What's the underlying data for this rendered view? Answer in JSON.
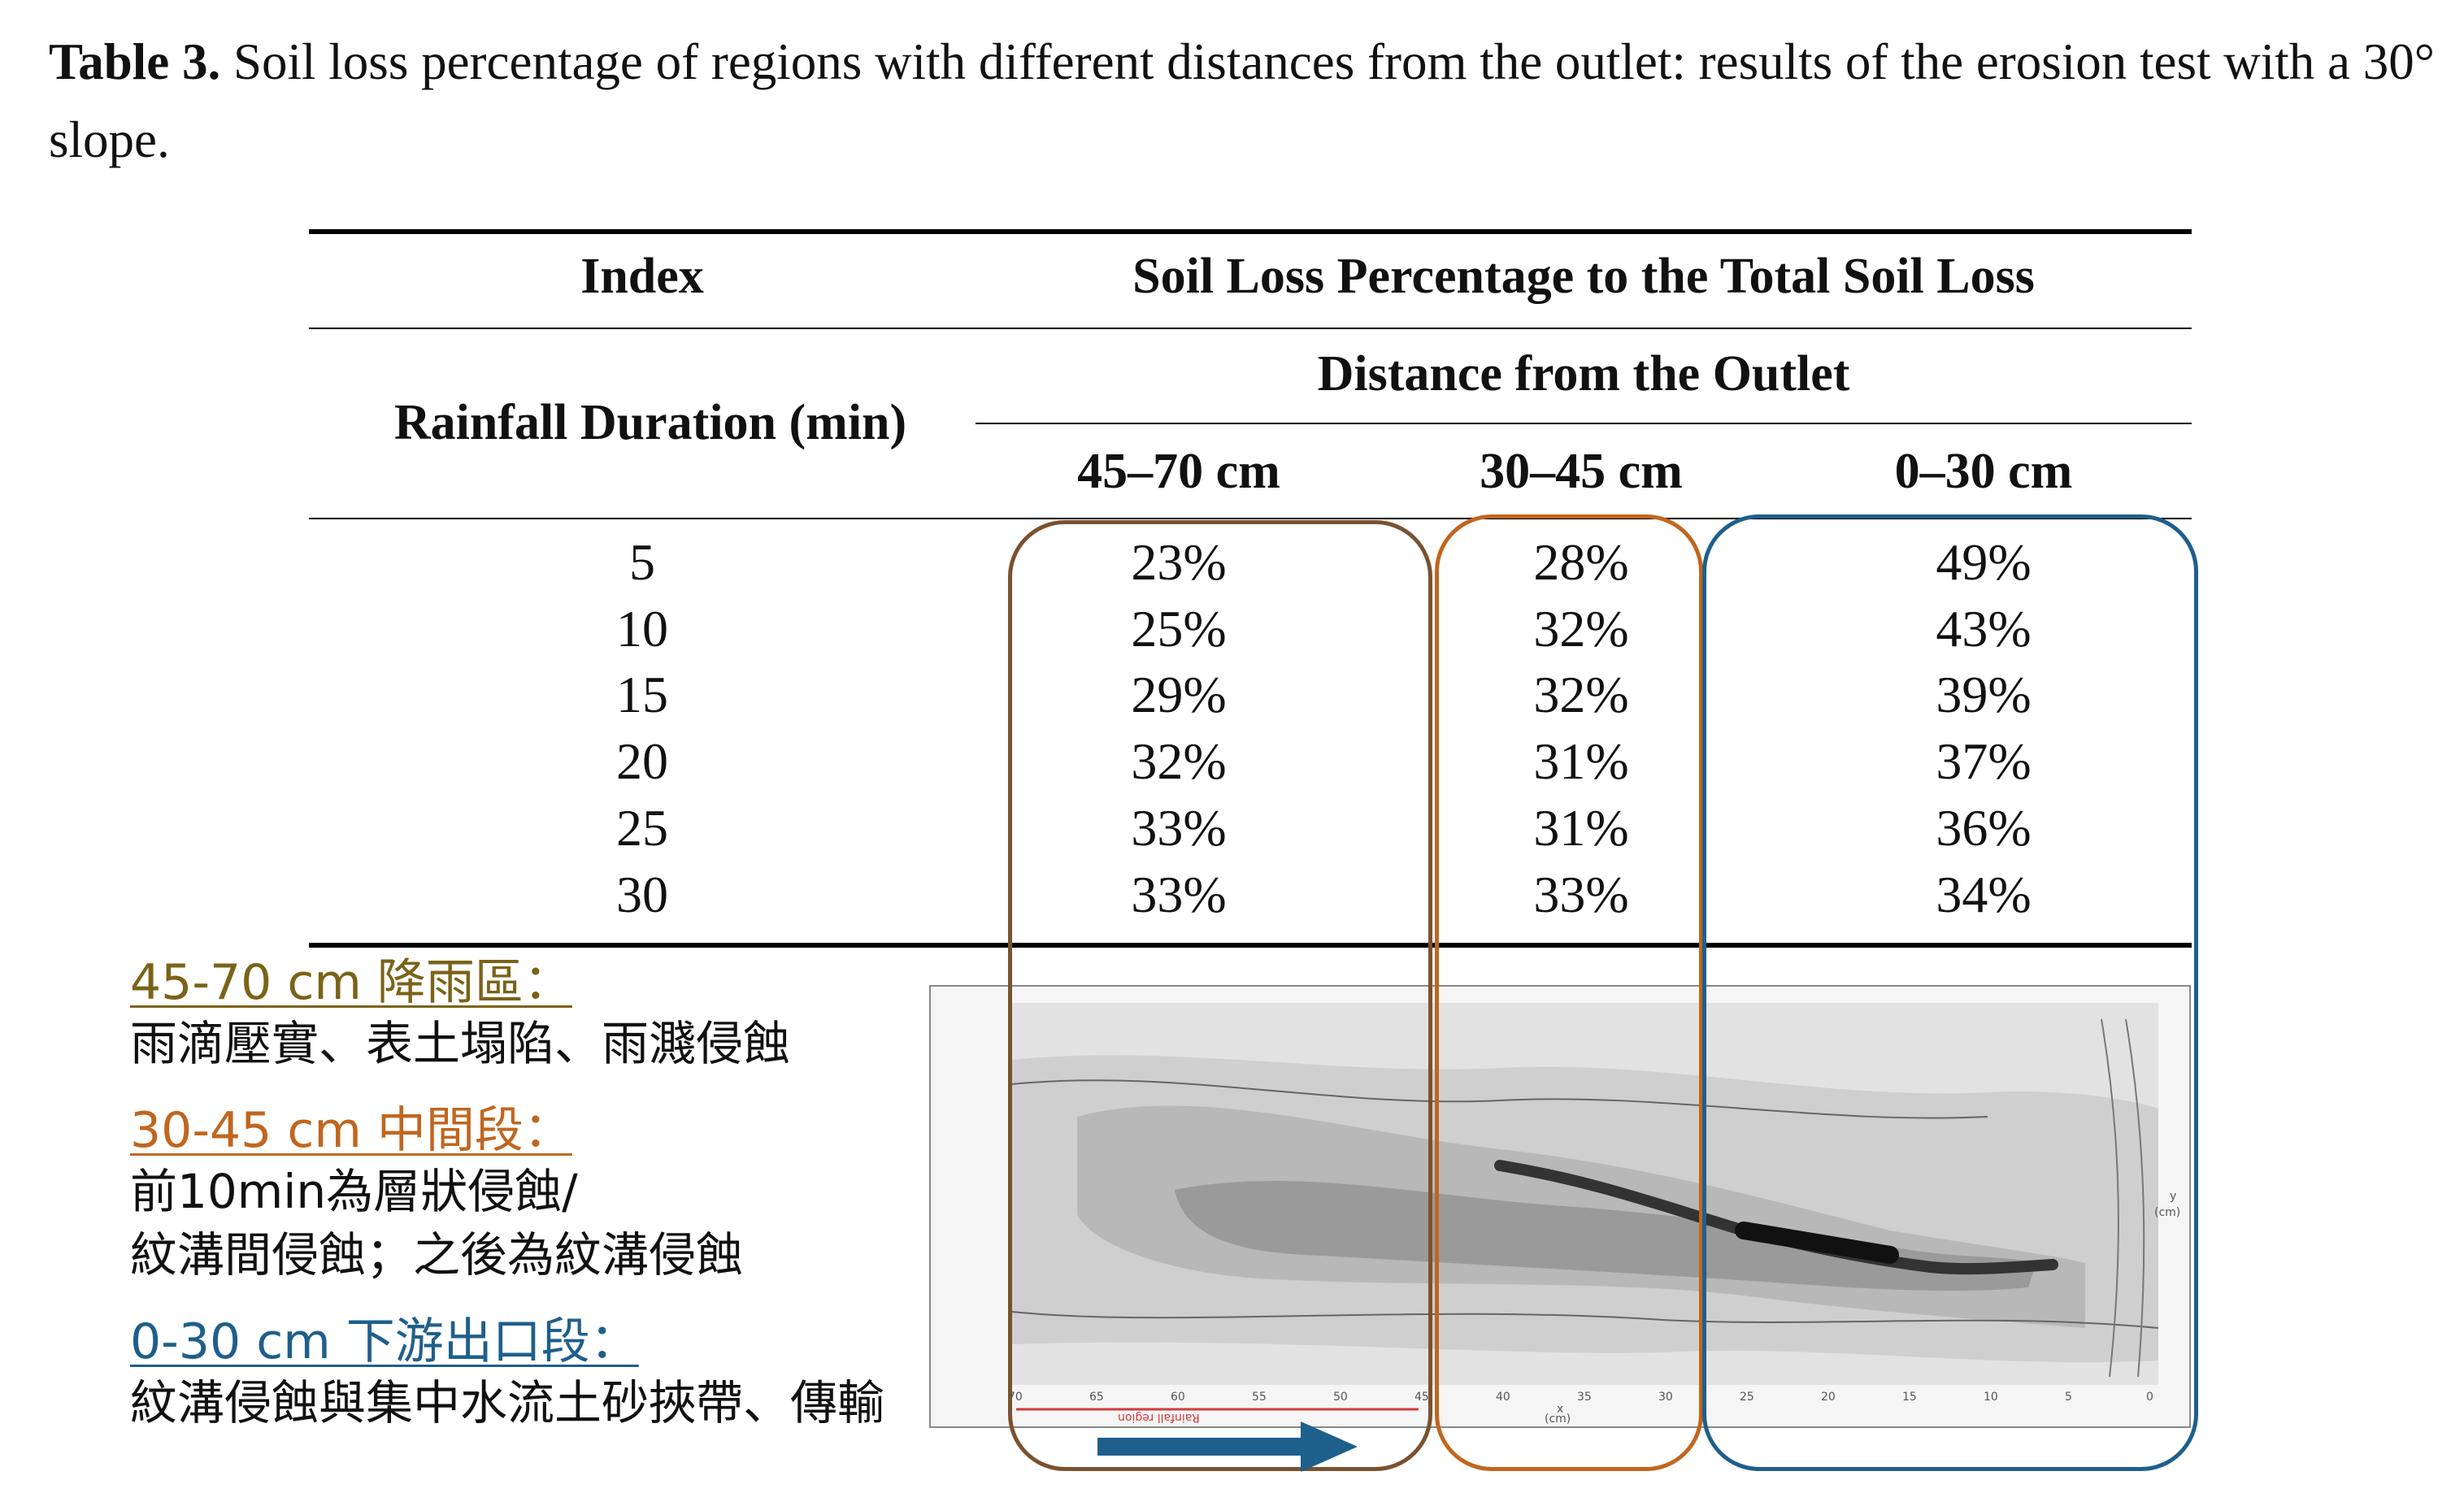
{
  "caption": {
    "label": "Table 3.",
    "text": " Soil loss percentage of regions with different distances from the outlet: results of the erosion test with a 30° slope."
  },
  "table": {
    "index_header": "Index",
    "main_header": "Soil Loss Percentage to the Total Soil Loss",
    "group_header": "Distance from the Outlet",
    "row_header": "Rainfall Duration (min)",
    "columns": [
      "45–70 cm",
      "30–45 cm",
      "0–30 cm"
    ],
    "rows": [
      {
        "duration": "5",
        "values": [
          "23%",
          "28%",
          "49%"
        ]
      },
      {
        "duration": "10",
        "values": [
          "25%",
          "32%",
          "43%"
        ]
      },
      {
        "duration": "15",
        "values": [
          "29%",
          "32%",
          "39%"
        ]
      },
      {
        "duration": "20",
        "values": [
          "32%",
          "31%",
          "37%"
        ]
      },
      {
        "duration": "25",
        "values": [
          "33%",
          "31%",
          "36%"
        ]
      },
      {
        "duration": "30",
        "values": [
          "33%",
          "33%",
          "34%"
        ]
      }
    ]
  },
  "notes": [
    {
      "title": "45-70 cm 降雨區：",
      "lines": [
        "雨滴壓實、表土塌陷、雨濺侵蝕"
      ],
      "color": "#7a6318"
    },
    {
      "title": "30-45 cm 中間段：",
      "lines": [
        "前10min為層狀侵蝕/",
        "紋溝間侵蝕；之後為紋溝侵蝕"
      ],
      "color": "#c0661f"
    },
    {
      "title": "0-30 cm 下游出口段：",
      "lines": [
        "紋溝侵蝕與集中水流土砂挾帶、傳輸"
      ],
      "color": "#1f5f8b"
    }
  ],
  "figure": {
    "x_ticks": [
      "70",
      "65",
      "60",
      "55",
      "50",
      "45",
      "40",
      "35",
      "30",
      "25",
      "20",
      "15",
      "10",
      "5",
      "0"
    ],
    "x_label": "x",
    "x_unit": "(cm)",
    "y_label": "y",
    "y_unit": "(cm)",
    "region_label": "Rainfall region"
  },
  "colors": {
    "box_45_70": "#7a5230",
    "box_30_45": "#c0661f",
    "box_0_30": "#1f5f8b",
    "arrow": "#1f5f8b",
    "region_line": "#d23b3b"
  }
}
